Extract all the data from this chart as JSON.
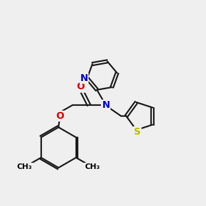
{
  "bg_color": "#efefef",
  "atom_colors": {
    "C": "#000000",
    "N": "#0000cc",
    "O": "#dd0000",
    "S": "#bbbb00"
  },
  "bond_color": "#1a1a1a",
  "bond_width": 1.6,
  "font_size": 8.5
}
